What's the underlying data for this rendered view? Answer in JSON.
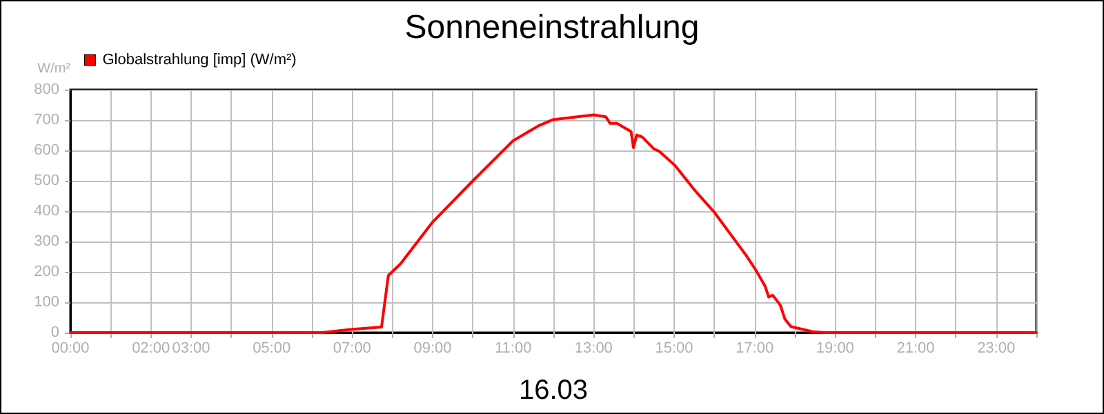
{
  "chart_data": {
    "type": "line",
    "title": "Sonneneinstrahlung",
    "xlabel": "16.03",
    "ylabel": "W/m²",
    "x": [
      0,
      6.26,
      6.95,
      7.73,
      7.9,
      8.2,
      9.0,
      10.03,
      11.0,
      11.63,
      11.98,
      13.0,
      13.3,
      13.41,
      13.58,
      13.93,
      13.99,
      14.07,
      14.21,
      14.5,
      14.63,
      15.01,
      15.53,
      16.0,
      16.78,
      17.02,
      17.26,
      17.35,
      17.45,
      17.64,
      17.75,
      17.9,
      18.44,
      18.73,
      24
    ],
    "series": [
      {
        "name": "Globalstrahlung [imp] (W/m²)",
        "color": "#ff0000",
        "values": [
          0,
          0,
          10,
          18,
          188,
          226,
          364,
          504,
          632,
          681,
          701,
          717,
          711,
          689,
          689,
          662,
          609,
          651,
          644,
          605,
          597,
          552,
          466,
          396,
          256,
          208,
          153,
          117,
          123,
          90,
          45,
          20,
          3,
          0,
          0
        ]
      }
    ],
    "xlim": [
      0,
      24
    ],
    "xticks": [
      {
        "value": 0,
        "label": "00:00"
      },
      {
        "value": 1,
        "label": null
      },
      {
        "value": 2,
        "label": "02:00"
      },
      {
        "value": 3,
        "label": "03:00"
      },
      {
        "value": 4,
        "label": null
      },
      {
        "value": 5,
        "label": "05:00"
      },
      {
        "value": 6,
        "label": null
      },
      {
        "value": 7,
        "label": "07:00"
      },
      {
        "value": 8,
        "label": null
      },
      {
        "value": 9,
        "label": "09:00"
      },
      {
        "value": 10,
        "label": null
      },
      {
        "value": 11,
        "label": "11:00"
      },
      {
        "value": 12,
        "label": null
      },
      {
        "value": 13,
        "label": "13:00"
      },
      {
        "value": 14,
        "label": null
      },
      {
        "value": 15,
        "label": "15:00"
      },
      {
        "value": 16,
        "label": null
      },
      {
        "value": 17,
        "label": "17:00"
      },
      {
        "value": 18,
        "label": null
      },
      {
        "value": 19,
        "label": "19:00"
      },
      {
        "value": 20,
        "label": null
      },
      {
        "value": 21,
        "label": "21:00"
      },
      {
        "value": 22,
        "label": null
      },
      {
        "value": 23,
        "label": "23:00"
      },
      {
        "value": 24,
        "label": null
      }
    ],
    "ylim": [
      0,
      800
    ],
    "yticks": [
      0,
      100,
      200,
      300,
      400,
      500,
      600,
      700,
      800
    ],
    "grid": true,
    "legend": "top left",
    "marker": "none",
    "line_style": "solid"
  }
}
